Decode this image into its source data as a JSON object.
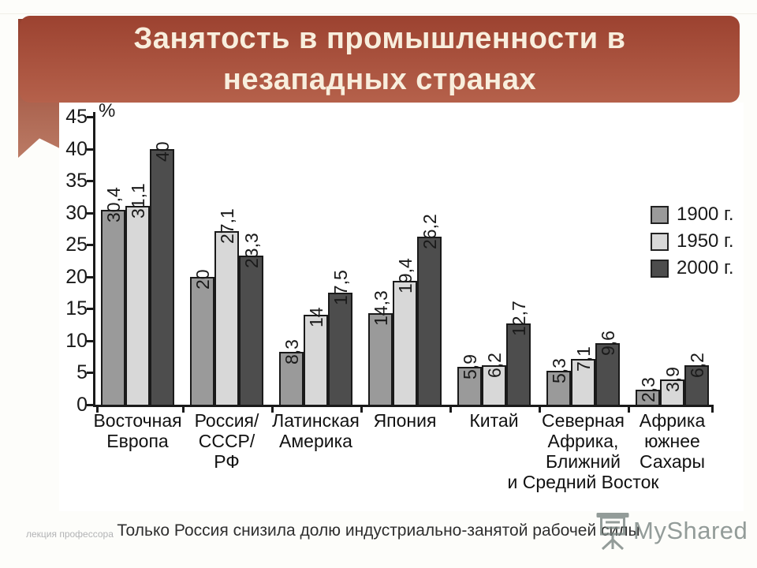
{
  "slide": {
    "title_line1": "Занятость в промышленности в",
    "title_line2": "незападных странах",
    "caption": "Только Россия снизила долю индустриально-занятой рабочей силы",
    "footer_left": "лекция профессора",
    "watermark": "MyShared"
  },
  "colors": {
    "header_top": "#9c4230",
    "header_bottom": "#b5614b",
    "title_text": "#f8eedd",
    "bar_border": "#1a1a1a"
  },
  "chart_data": {
    "type": "bar",
    "title": "",
    "xlabel": "",
    "ylabel": "%",
    "ylim": [
      0,
      45
    ],
    "yticks": [
      0,
      5,
      10,
      15,
      20,
      25,
      30,
      35,
      40,
      45
    ],
    "grid": false,
    "legend_position": "upper right",
    "categories": [
      "Восточная\nЕвропа",
      "Россия/\nСССР/\nРФ",
      "Латинская\nАмерика",
      "Япония",
      "Китай",
      "Северная\nАфрика,\nБлижний\nи Средний Восток",
      "Африка\nюжнее\nСахары"
    ],
    "series": [
      {
        "name": "1900 г.",
        "color": "#9a9a9a",
        "values": [
          30.4,
          20,
          8.3,
          14.3,
          5.9,
          5.3,
          2.3
        ],
        "value_labels": [
          "30,4",
          "20",
          "8,3",
          "14,3",
          "5,9",
          "5,3",
          "2,3"
        ]
      },
      {
        "name": "1950 г.",
        "color": "#d8d8d8",
        "values": [
          31.1,
          27.1,
          14,
          19.4,
          6.2,
          7.1,
          3.9
        ],
        "value_labels": [
          "31,1",
          "27,1",
          "14",
          "19,4",
          "6,2",
          "7,1",
          "3,9"
        ]
      },
      {
        "name": "2000 г.",
        "color": "#4d4d4d",
        "values": [
          40,
          23.3,
          17.5,
          26.2,
          12.7,
          9.6,
          6.2
        ],
        "value_labels": [
          "40",
          "23,3",
          "17,5",
          "26,2",
          "12,7",
          "9,6",
          "6,2"
        ]
      }
    ]
  }
}
